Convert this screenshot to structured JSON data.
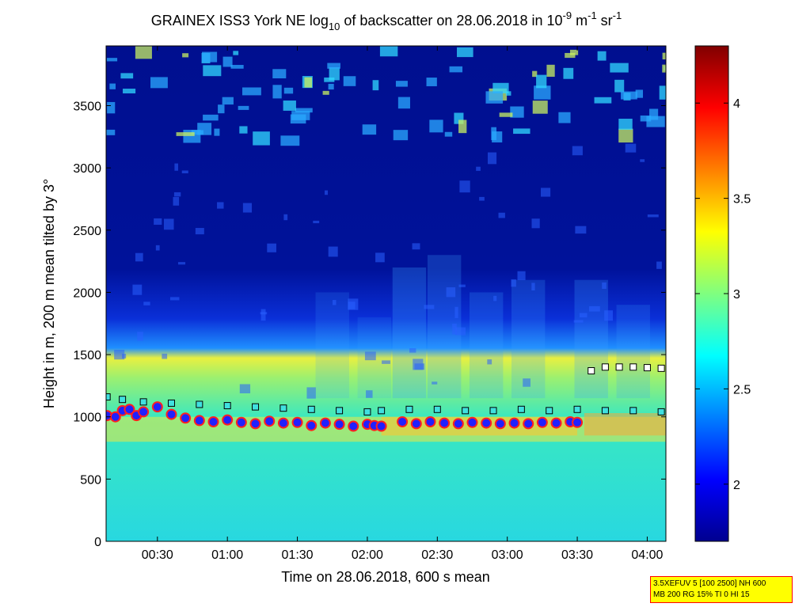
{
  "chart_data": {
    "type": "heatmap",
    "title": {
      "prefix": "GRAINEX ISS3 York NE log",
      "prefix_sub": "10",
      "middle": " of backscatter on 28.06.2018 in 10",
      "exp1": "-9",
      "unit1": " m",
      "exp2": "-1",
      "unit2": " sr",
      "exp3": "-1"
    },
    "xlabel": "Time on 28.06.2018, 600 s mean",
    "ylabel": "Height in m, 200 m mean tilted by 3°",
    "x_range_hours": [
      0.1333,
      4.1333
    ],
    "x_ticks": [
      {
        "v": 0.5,
        "label": "00:30"
      },
      {
        "v": 1.0,
        "label": "01:00"
      },
      {
        "v": 1.5,
        "label": "01:30"
      },
      {
        "v": 2.0,
        "label": "02:00"
      },
      {
        "v": 2.5,
        "label": "02:30"
      },
      {
        "v": 3.0,
        "label": "03:00"
      },
      {
        "v": 3.5,
        "label": "03:30"
      },
      {
        "v": 4.0,
        "label": "04:00"
      }
    ],
    "ylim": [
      0,
      3980
    ],
    "y_ticks": [
      0,
      500,
      1000,
      1500,
      2000,
      2500,
      3000,
      3500
    ],
    "colorbar": {
      "range": [
        1.7,
        4.3
      ],
      "ticks": [
        2,
        2.5,
        3,
        3.5,
        4
      ],
      "colormap": "jet"
    },
    "boundary_layer": {
      "name": "mixing layer height (filled circles)",
      "x": [
        0.14,
        0.2,
        0.25,
        0.3,
        0.35,
        0.4,
        0.5,
        0.6,
        0.7,
        0.8,
        0.9,
        1.0,
        1.1,
        1.2,
        1.3,
        1.4,
        1.5,
        1.6,
        1.7,
        1.8,
        1.9,
        2.0,
        2.05,
        2.1,
        2.25,
        2.35,
        2.45,
        2.55,
        2.65,
        2.75,
        2.85,
        2.95,
        3.05,
        3.15,
        3.25,
        3.35,
        3.45,
        3.5
      ],
      "y": [
        1010,
        1000,
        1050,
        1060,
        1010,
        1040,
        1080,
        1020,
        990,
        970,
        960,
        975,
        955,
        945,
        965,
        950,
        955,
        930,
        950,
        940,
        925,
        940,
        930,
        925,
        960,
        945,
        960,
        950,
        945,
        955,
        950,
        945,
        950,
        945,
        955,
        950,
        960,
        955
      ]
    },
    "upper_layer": {
      "name": "aerosol layer top (squares)",
      "x": [
        0.14,
        0.25,
        0.4,
        0.6,
        0.8,
        1.0,
        1.2,
        1.4,
        1.6,
        1.8,
        2.0,
        2.1,
        2.3,
        2.5,
        2.7,
        2.9,
        3.1,
        3.3,
        3.5,
        3.7,
        3.9,
        4.1
      ],
      "y": [
        1160,
        1140,
        1120,
        1110,
        1100,
        1090,
        1080,
        1070,
        1060,
        1050,
        1040,
        1050,
        1060,
        1060,
        1050,
        1050,
        1060,
        1050,
        1060,
        1050,
        1050,
        1040
      ]
    },
    "residual_layer": {
      "name": "upper layer (squares)",
      "x": [
        3.6,
        3.7,
        3.8,
        3.9,
        4.0,
        4.1
      ],
      "y": [
        1370,
        1400,
        1400,
        1400,
        1395,
        1390
      ]
    }
  },
  "info_box": {
    "line1": "3.5XEFUV 5 [100 2500] NH 600",
    "line2": "MB 200 RG 15% TI 0 HI 15"
  },
  "colors": {
    "border": "#ff0000",
    "background": "#ffff00"
  }
}
